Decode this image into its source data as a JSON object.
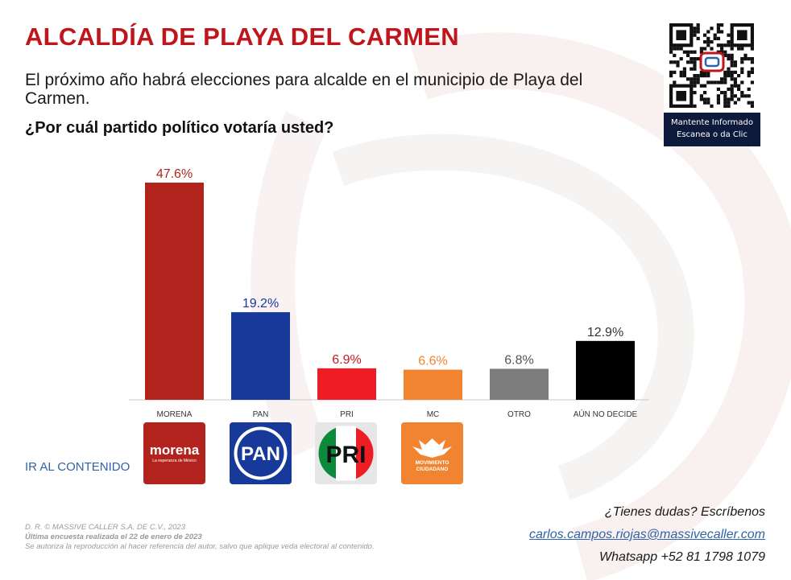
{
  "header": {
    "title": "ALCALDÍA DE PLAYA DEL CARMEN",
    "subtitle": "El próximo año habrá elecciones para alcalde en el municipio de Playa del Carmen.",
    "question": "¿Por cuál partido político votaría usted?"
  },
  "qr": {
    "caption_line1": "Mantente Informado",
    "caption_line2": "Escanea o da Clic"
  },
  "chart_data": {
    "type": "bar",
    "categories": [
      "MORENA",
      "PAN",
      "PRI",
      "MC",
      "OTRO",
      "AÚN NO DECIDE"
    ],
    "values": [
      47.6,
      19.2,
      6.9,
      6.6,
      6.8,
      12.9
    ],
    "value_labels": [
      "47.6%",
      "19.2%",
      "6.9%",
      "6.6%",
      "6.8%",
      "12.9%"
    ],
    "bar_colors": [
      "#b3231e",
      "#17399a",
      "#ee1c24",
      "#f08430",
      "#7d7d7d",
      "#000000"
    ],
    "label_colors": [
      "#b3231e",
      "#17399a",
      "#c41a1f",
      "#f08430",
      "#555555",
      "#333333"
    ],
    "ylim": [
      0,
      50
    ],
    "grid": false,
    "xlabel": "",
    "ylabel": ""
  },
  "logos": {
    "morena": {
      "name": "morena",
      "tagline": "La esperanza de México",
      "color": "#b3231e"
    },
    "pan": {
      "name": "PAN",
      "color": "#17399a"
    },
    "pri": {
      "name": "PRI",
      "colors": [
        "#0a8a3a",
        "#ffffff",
        "#ee1c24"
      ]
    },
    "mc": {
      "name": "MOVIMIENTO CIUDADANO",
      "line1": "MOVIMIENTO",
      "line2": "CIUDADANO",
      "color": "#f08430"
    }
  },
  "nav": {
    "ir_al_contenido": "IR AL CONTENIDO"
  },
  "footer": {
    "copyright": "D. R. © MASSIVE CALLER S.A. DE C.V., 2023",
    "last_survey": "Última encuesta realizada el 22 de enero de 2023",
    "notice": "Se autoriza la reproducción al hacer referencia del autor, salvo que aplique veda electoral al contenido."
  },
  "contact": {
    "question": "¿Tienes dudas? Escríbenos",
    "email": "carlos.campos.riojas@massivecaller.com",
    "whatsapp": "Whatsapp +52 81 1798 1079"
  },
  "colors": {
    "brand_red": "#c0151b",
    "link_blue": "#2f63a8",
    "qr_caption_bg": "#0d1a3c"
  }
}
